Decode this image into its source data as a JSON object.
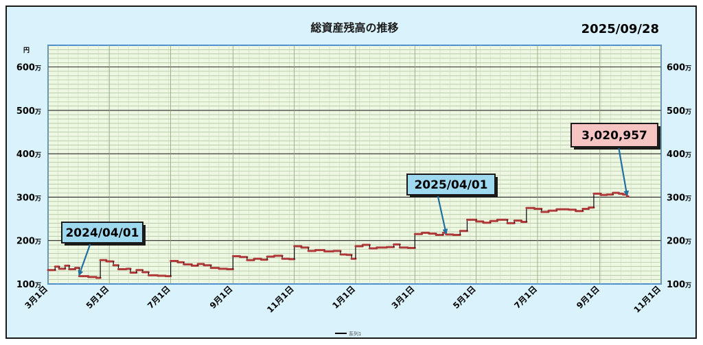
{
  "chart_data": {
    "type": "line",
    "title": "総資産残高の推移",
    "date_label": "2025/09/28",
    "y_unit_label": "円",
    "y_tick_suffix": "万",
    "ylim": [
      100,
      650
    ],
    "y_ticks": [
      100,
      200,
      300,
      400,
      500,
      600
    ],
    "grid": true,
    "x_tick_labels": [
      "3月1日",
      "5月1日",
      "7月1日",
      "9月1日",
      "11月1日",
      "1月1日",
      "3月1日",
      "5月1日",
      "7月1日",
      "9月1日",
      "11月1日"
    ],
    "legend": {
      "position": "bottom",
      "label": "系列1"
    },
    "colors": {
      "line": "#b03a3a",
      "step": "#000000",
      "callout_blue": "#9fd9f0",
      "callout_pink": "#f7c4c4",
      "arrow": "#1f6fa0"
    },
    "series": [
      {
        "points": [
          [
            "2024-03-01",
            132
          ],
          [
            "2024-03-08",
            140
          ],
          [
            "2024-03-12",
            135
          ],
          [
            "2024-03-18",
            142
          ],
          [
            "2024-03-22",
            134
          ],
          [
            "2024-03-28",
            137
          ],
          [
            "2024-04-01",
            118
          ],
          [
            "2024-04-10",
            116
          ],
          [
            "2024-04-18",
            114
          ],
          [
            "2024-04-22",
            155
          ],
          [
            "2024-04-28",
            152
          ],
          [
            "2024-05-05",
            143
          ],
          [
            "2024-05-10",
            134
          ],
          [
            "2024-05-18",
            135
          ],
          [
            "2024-05-22",
            126
          ],
          [
            "2024-05-28",
            132
          ],
          [
            "2024-06-03",
            127
          ],
          [
            "2024-06-09",
            120
          ],
          [
            "2024-06-18",
            119
          ],
          [
            "2024-06-26",
            118
          ],
          [
            "2024-07-01",
            153
          ],
          [
            "2024-07-08",
            150
          ],
          [
            "2024-07-14",
            145
          ],
          [
            "2024-07-22",
            142
          ],
          [
            "2024-07-28",
            146
          ],
          [
            "2024-08-03",
            143
          ],
          [
            "2024-08-10",
            137
          ],
          [
            "2024-08-18",
            135
          ],
          [
            "2024-08-26",
            134
          ],
          [
            "2024-09-01",
            164
          ],
          [
            "2024-09-08",
            162
          ],
          [
            "2024-09-15",
            155
          ],
          [
            "2024-09-22",
            158
          ],
          [
            "2024-09-29",
            156
          ],
          [
            "2024-10-05",
            163
          ],
          [
            "2024-10-12",
            165
          ],
          [
            "2024-10-20",
            158
          ],
          [
            "2024-10-27",
            157
          ],
          [
            "2024-11-01",
            187
          ],
          [
            "2024-11-08",
            184
          ],
          [
            "2024-11-15",
            176
          ],
          [
            "2024-11-22",
            178
          ],
          [
            "2024-12-01",
            175
          ],
          [
            "2024-12-10",
            176
          ],
          [
            "2024-12-17",
            168
          ],
          [
            "2024-12-23",
            167
          ],
          [
            "2024-12-28",
            158
          ],
          [
            "2025-01-01",
            187
          ],
          [
            "2025-01-08",
            190
          ],
          [
            "2025-01-15",
            182
          ],
          [
            "2025-01-22",
            184
          ],
          [
            "2025-02-01",
            185
          ],
          [
            "2025-02-08",
            191
          ],
          [
            "2025-02-14",
            184
          ],
          [
            "2025-02-22",
            183
          ],
          [
            "2025-03-01",
            215
          ],
          [
            "2025-03-08",
            218
          ],
          [
            "2025-03-15",
            216
          ],
          [
            "2025-03-22",
            213
          ],
          [
            "2025-03-29",
            218
          ],
          [
            "2025-04-01",
            214
          ],
          [
            "2025-04-08",
            213
          ],
          [
            "2025-04-15",
            222
          ],
          [
            "2025-04-22",
            248
          ],
          [
            "2025-05-01",
            244
          ],
          [
            "2025-05-08",
            241
          ],
          [
            "2025-05-15",
            245
          ],
          [
            "2025-05-22",
            248
          ],
          [
            "2025-06-01",
            240
          ],
          [
            "2025-06-08",
            246
          ],
          [
            "2025-06-15",
            243
          ],
          [
            "2025-06-20",
            275
          ],
          [
            "2025-06-28",
            273
          ],
          [
            "2025-07-05",
            266
          ],
          [
            "2025-07-12",
            269
          ],
          [
            "2025-07-20",
            272
          ],
          [
            "2025-08-01",
            271
          ],
          [
            "2025-08-08",
            268
          ],
          [
            "2025-08-15",
            273
          ],
          [
            "2025-08-21",
            276
          ],
          [
            "2025-08-26",
            308
          ],
          [
            "2025-09-02",
            305
          ],
          [
            "2025-09-08",
            306
          ],
          [
            "2025-09-14",
            310
          ],
          [
            "2025-09-20",
            308
          ],
          [
            "2025-09-24",
            306
          ],
          [
            "2025-09-28",
            302
          ]
        ]
      }
    ],
    "annotations": [
      {
        "text": "2024/04/01",
        "x": "2024-04-01",
        "y": 118,
        "style": "blue"
      },
      {
        "text": "2025/04/01",
        "x": "2025-04-01",
        "y": 214,
        "style": "blue"
      },
      {
        "text": "3,020,957",
        "x": "2025-09-28",
        "y": 302,
        "style": "pink"
      }
    ]
  }
}
